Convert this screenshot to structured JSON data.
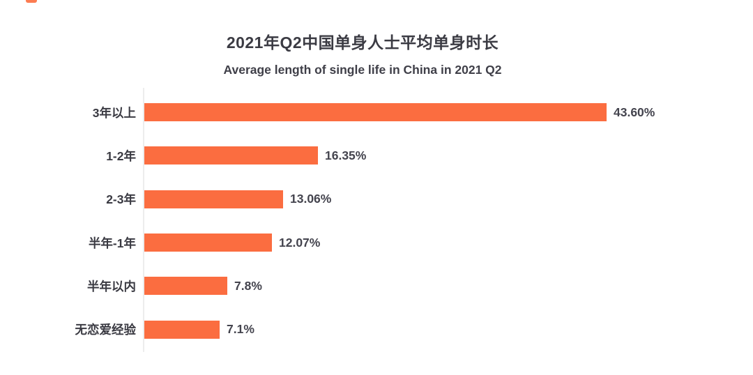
{
  "page": {
    "background": "#ffffff",
    "logo_mark_color": "#fc7c52"
  },
  "chart_data": {
    "type": "bar",
    "orientation": "horizontal",
    "title": "2021年Q2中国单身人士平均单身时长",
    "subtitle": "Average length of single life in China in 2021 Q2",
    "categories": [
      "3年以上",
      "1-2年",
      "2-3年",
      "半年-1年",
      "半年以内",
      "无恋爱经验"
    ],
    "values": [
      43.6,
      16.35,
      13.06,
      12.07,
      7.8,
      7.1
    ],
    "value_labels": [
      "43.60%",
      "16.35%",
      "13.06%",
      "12.07%",
      "7.8%",
      "7.1%"
    ],
    "xlabel": "",
    "ylabel": "",
    "xlim": [
      0,
      57
    ],
    "grid": false,
    "legend": "none",
    "bar_color": "#fb6d40",
    "axis_line_color": "#ededed",
    "label_color": "#3a3a42",
    "value_color": "#44444e"
  }
}
